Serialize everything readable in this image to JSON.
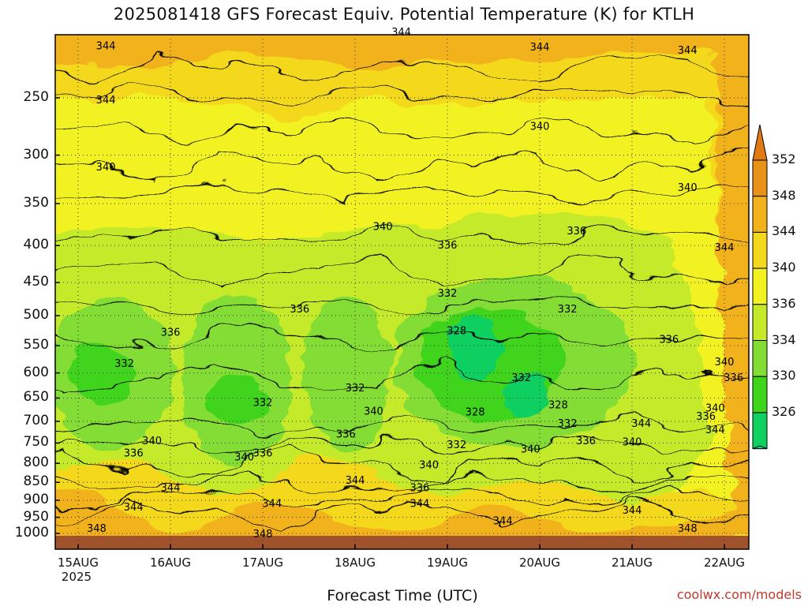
{
  "title": "2025081418 GFS Forecast Equiv. Potential Temperature (K) for KTLH",
  "credit": "coolwx.com/models",
  "chart_data": {
    "type": "heatmap",
    "title": "2025081418 GFS Forecast Equiv. Potential Temperature (K) for KTLH",
    "xlabel": "Forecast Time (UTC)",
    "ylabel": "",
    "x_ticks": [
      "15AUG",
      "16AUG",
      "17AUG",
      "18AUG",
      "19AUG",
      "20AUG",
      "21AUG",
      "22AUG"
    ],
    "x_year_label": "2025",
    "y_ticks": [
      250,
      300,
      350,
      400,
      450,
      500,
      550,
      600,
      650,
      700,
      750,
      800,
      850,
      900,
      950,
      1000
    ],
    "y_scale": "log",
    "y_inverted": true,
    "ylim": [
      1000,
      200
    ],
    "grid": true,
    "colorbar": {
      "labels": [
        352,
        348,
        344,
        340,
        336,
        334,
        330,
        326
      ],
      "colors": [
        "#e8921a",
        "#f2b21c",
        "#f4d81c",
        "#f2f220",
        "#c4ea2a",
        "#84dd34",
        "#3fd51a",
        "#10d060"
      ]
    },
    "contour_labels": [
      {
        "text": "344",
        "day": 15.3,
        "p": 212
      },
      {
        "text": "344",
        "day": 18.5,
        "p": 203
      },
      {
        "text": "344",
        "day": 20.0,
        "p": 213
      },
      {
        "text": "344",
        "day": 21.6,
        "p": 215
      },
      {
        "text": "344",
        "day": 15.3,
        "p": 252
      },
      {
        "text": "340",
        "day": 20.0,
        "p": 274
      },
      {
        "text": "340",
        "day": 15.3,
        "p": 312
      },
      {
        "text": "340",
        "day": 21.6,
        "p": 333
      },
      {
        "text": "340",
        "day": 18.3,
        "p": 377
      },
      {
        "text": "336",
        "day": 19.0,
        "p": 400
      },
      {
        "text": "336",
        "day": 20.4,
        "p": 382
      },
      {
        "text": "344",
        "day": 22.0,
        "p": 403
      },
      {
        "text": "332",
        "day": 19.0,
        "p": 466
      },
      {
        "text": "332",
        "day": 20.3,
        "p": 490
      },
      {
        "text": "336",
        "day": 17.4,
        "p": 490
      },
      {
        "text": "336",
        "day": 16.0,
        "p": 528
      },
      {
        "text": "328",
        "day": 19.1,
        "p": 525
      },
      {
        "text": "336",
        "day": 21.4,
        "p": 540
      },
      {
        "text": "332",
        "day": 15.5,
        "p": 583
      },
      {
        "text": "332",
        "day": 18.0,
        "p": 630
      },
      {
        "text": "332",
        "day": 19.8,
        "p": 610
      },
      {
        "text": "340",
        "day": 22.0,
        "p": 580
      },
      {
        "text": "336",
        "day": 22.1,
        "p": 610
      },
      {
        "text": "332",
        "day": 17.0,
        "p": 660
      },
      {
        "text": "328",
        "day": 20.2,
        "p": 665
      },
      {
        "text": "340",
        "day": 18.2,
        "p": 678
      },
      {
        "text": "340",
        "day": 21.9,
        "p": 672
      },
      {
        "text": "328",
        "day": 19.3,
        "p": 680
      },
      {
        "text": "336",
        "day": 21.8,
        "p": 690
      },
      {
        "text": "344",
        "day": 21.1,
        "p": 705
      },
      {
        "text": "344",
        "day": 21.9,
        "p": 720
      },
      {
        "text": "332",
        "day": 20.3,
        "p": 705
      },
      {
        "text": "336",
        "day": 17.9,
        "p": 730
      },
      {
        "text": "340",
        "day": 15.8,
        "p": 745
      },
      {
        "text": "336",
        "day": 20.5,
        "p": 745
      },
      {
        "text": "340",
        "day": 21.0,
        "p": 748
      },
      {
        "text": "332",
        "day": 19.1,
        "p": 755
      },
      {
        "text": "340",
        "day": 19.9,
        "p": 765
      },
      {
        "text": "336",
        "day": 15.6,
        "p": 775
      },
      {
        "text": "340",
        "day": 16.8,
        "p": 785
      },
      {
        "text": "336",
        "day": 17.0,
        "p": 775
      },
      {
        "text": "340",
        "day": 18.8,
        "p": 805
      },
      {
        "text": "344",
        "day": 18.0,
        "p": 845
      },
      {
        "text": "336",
        "day": 18.7,
        "p": 865
      },
      {
        "text": "344",
        "day": 16.0,
        "p": 865
      },
      {
        "text": "344",
        "day": 17.1,
        "p": 910
      },
      {
        "text": "344",
        "day": 18.7,
        "p": 910
      },
      {
        "text": "344",
        "day": 15.6,
        "p": 920
      },
      {
        "text": "344",
        "day": 21.0,
        "p": 930
      },
      {
        "text": "344",
        "day": 19.6,
        "p": 962
      },
      {
        "text": "348",
        "day": 15.2,
        "p": 985
      },
      {
        "text": "348",
        "day": 17.0,
        "p": 1002
      },
      {
        "text": "348",
        "day": 21.6,
        "p": 985
      }
    ]
  }
}
